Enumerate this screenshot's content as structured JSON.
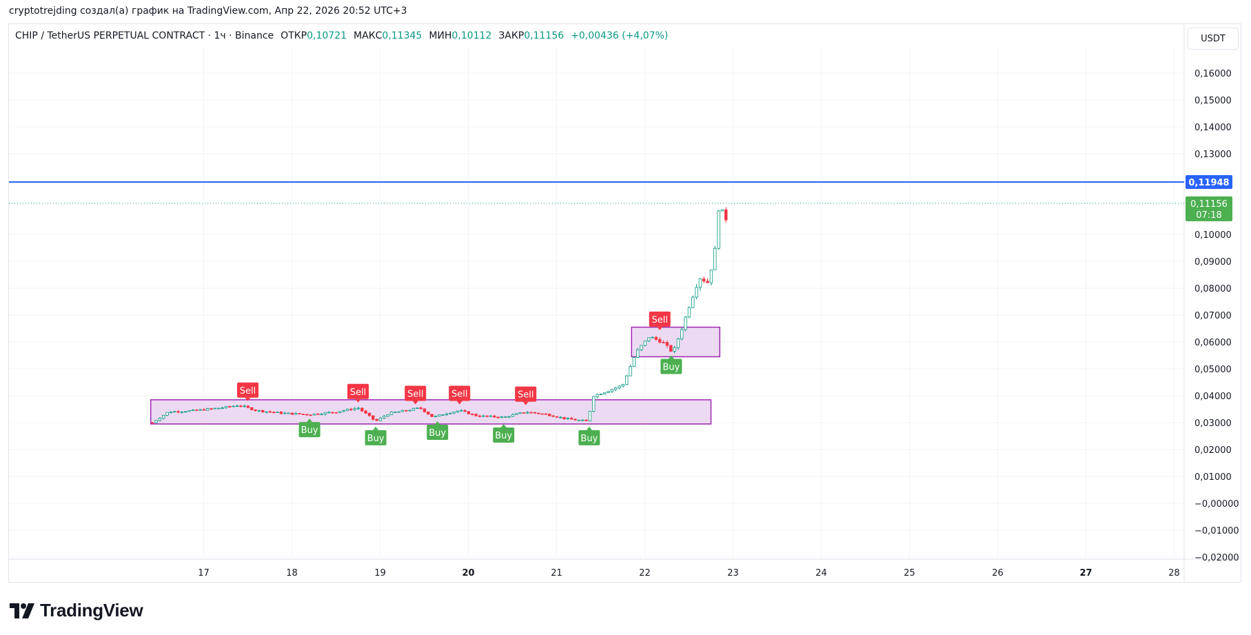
{
  "caption": "cryptotrejding создал(а) график на TradingView.com, Апр 22, 2026 20:52 UTC+3",
  "legend": {
    "symbol": "CHIP / TetherUS PERPETUAL CONTRACT · 1ч · Binance",
    "open_label": "ОТКР",
    "open_value": "0,10721",
    "high_label": "МАКС",
    "high_value": "0,11345",
    "low_label": "МИН",
    "low_value": "0,10112",
    "close_label": "ЗАКР",
    "close_value": "0,11156",
    "change": "+0,00436 (+4,07%)"
  },
  "currency": "USDT",
  "brand": "TradingView",
  "colors": {
    "up": "#089981",
    "down": "#f23645",
    "hline": "#2962ff",
    "zone_fill": "#e9d3f0",
    "zone_border": "#9c27b0",
    "buy": "#4caf50",
    "sell": "#f23645",
    "last_price_bg": "#4caf50"
  },
  "chart_data": {
    "type": "candlestick",
    "x_axis": {
      "ticks": [
        "17",
        "18",
        "19",
        "20",
        "21",
        "22",
        "23",
        "24",
        "25",
        "26",
        "27",
        "28"
      ],
      "bold_ticks": [
        "20",
        "27"
      ],
      "unit": "day of April 2026"
    },
    "y_axis": {
      "ticks": [
        "0,16000",
        "0,15000",
        "0,14000",
        "0,13000",
        "0,10000",
        "0,09000",
        "0,08000",
        "0,07000",
        "0,06000",
        "0,05000",
        "0,04000",
        "0,03000",
        "0,02000",
        "0,01000",
        "−0,00000",
        "−0,01000",
        "−0,02000"
      ],
      "tick_values": [
        0.16,
        0.15,
        0.14,
        0.13,
        0.1,
        0.09,
        0.08,
        0.07,
        0.06,
        0.05,
        0.04,
        0.03,
        0.02,
        0.01,
        0.0,
        -0.01,
        -0.02
      ],
      "range": [
        -0.02,
        0.167
      ],
      "position": "right"
    },
    "horizontal_line": {
      "value": 0.11948,
      "label": "0,11948"
    },
    "last_price": {
      "value": 0.11156,
      "label": "0,11156",
      "countdown": "07:18"
    },
    "zones": [
      {
        "x_start": 16.4,
        "x_end": 22.75,
        "y_low": 0.0295,
        "y_high": 0.0385
      },
      {
        "x_start": 21.85,
        "x_end": 22.85,
        "y_low": 0.0545,
        "y_high": 0.0655
      }
    ],
    "signals": [
      {
        "type": "Sell",
        "label": "Sell",
        "x": 17.5,
        "y": 0.038
      },
      {
        "type": "Buy",
        "label": "Buy",
        "x": 18.2,
        "y": 0.0315
      },
      {
        "type": "Sell",
        "label": "Sell",
        "x": 18.75,
        "y": 0.0375
      },
      {
        "type": "Buy",
        "label": "Buy",
        "x": 18.95,
        "y": 0.0285
      },
      {
        "type": "Sell",
        "label": "Sell",
        "x": 19.4,
        "y": 0.0368
      },
      {
        "type": "Buy",
        "label": "Buy",
        "x": 19.65,
        "y": 0.0305
      },
      {
        "type": "Sell",
        "label": "Sell",
        "x": 19.9,
        "y": 0.0368
      },
      {
        "type": "Buy",
        "label": "Buy",
        "x": 20.4,
        "y": 0.0295
      },
      {
        "type": "Sell",
        "label": "Sell",
        "x": 20.65,
        "y": 0.0365
      },
      {
        "type": "Buy",
        "label": "Buy",
        "x": 21.37,
        "y": 0.0285
      },
      {
        "type": "Sell",
        "label": "Sell",
        "x": 22.17,
        "y": 0.0644
      },
      {
        "type": "Buy",
        "label": "Buy",
        "x": 22.3,
        "y": 0.055
      }
    ],
    "price_path": [
      [
        16.42,
        0.03
      ],
      [
        16.6,
        0.034
      ],
      [
        16.9,
        0.0345
      ],
      [
        17.2,
        0.0355
      ],
      [
        17.4,
        0.0365
      ],
      [
        17.6,
        0.0345
      ],
      [
        17.9,
        0.0335
      ],
      [
        18.2,
        0.033
      ],
      [
        18.5,
        0.034
      ],
      [
        18.75,
        0.0355
      ],
      [
        18.85,
        0.033
      ],
      [
        18.95,
        0.0305
      ],
      [
        19.1,
        0.0335
      ],
      [
        19.3,
        0.0345
      ],
      [
        19.45,
        0.0355
      ],
      [
        19.6,
        0.032
      ],
      [
        19.75,
        0.0335
      ],
      [
        19.9,
        0.0345
      ],
      [
        20.1,
        0.0325
      ],
      [
        20.4,
        0.032
      ],
      [
        20.65,
        0.034
      ],
      [
        20.9,
        0.033
      ],
      [
        21.1,
        0.0315
      ],
      [
        21.35,
        0.0305
      ],
      [
        21.42,
        0.04
      ],
      [
        21.6,
        0.042
      ],
      [
        21.75,
        0.044
      ],
      [
        21.9,
        0.056
      ],
      [
        22.05,
        0.062
      ],
      [
        22.2,
        0.06
      ],
      [
        22.32,
        0.056
      ],
      [
        22.42,
        0.065
      ],
      [
        22.52,
        0.075
      ],
      [
        22.62,
        0.084
      ],
      [
        22.72,
        0.082
      ],
      [
        22.8,
        0.095
      ],
      [
        22.85,
        0.115
      ],
      [
        22.9,
        0.103
      ],
      [
        22.96,
        0.1116
      ]
    ]
  }
}
